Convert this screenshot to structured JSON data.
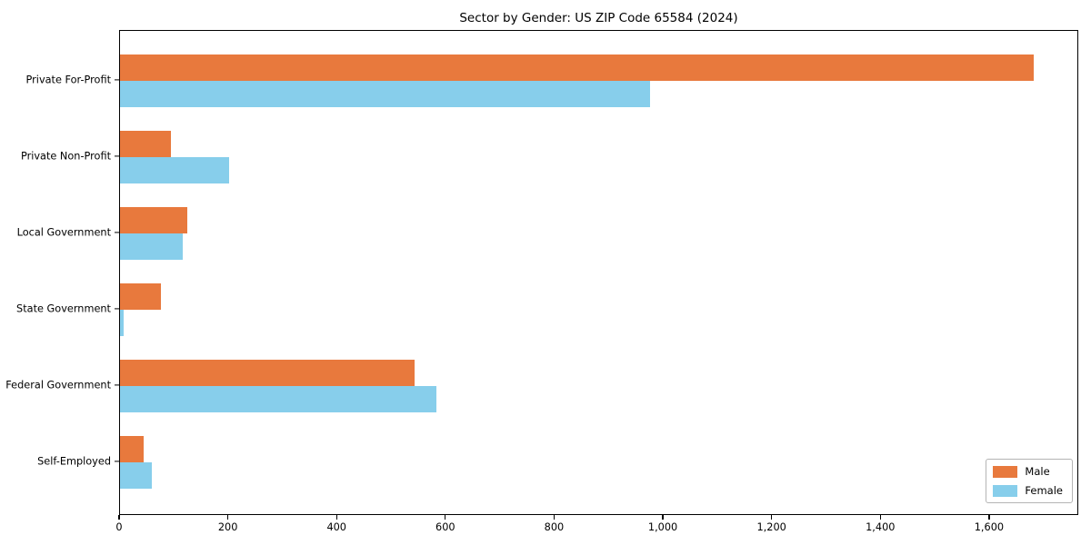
{
  "chart_data": {
    "type": "bar",
    "orientation": "horizontal",
    "title": "Sector by Gender: US ZIP Code 65584 (2024)",
    "categories": [
      "Private For-Profit",
      "Private Non-Profit",
      "Local Government",
      "State Government",
      "Federal Government",
      "Self-Employed"
    ],
    "series": [
      {
        "name": "Male",
        "color": "#E8793D",
        "values": [
          1680,
          94,
          123,
          75,
          542,
          44
        ]
      },
      {
        "name": "Female",
        "color": "#87CEEB",
        "values": [
          975,
          200,
          115,
          6,
          582,
          59
        ]
      }
    ],
    "xlabel": "",
    "ylabel": "",
    "xlim": [
      0,
      1764
    ],
    "xticks": [
      0,
      200,
      400,
      600,
      800,
      1000,
      1200,
      1400,
      1600
    ],
    "xtick_labels": [
      "0",
      "200",
      "400",
      "600",
      "800",
      "1,000",
      "1,200",
      "1,400",
      "1,600"
    ],
    "grid": false,
    "legend": {
      "position": "lower right",
      "entries": [
        "Male",
        "Female"
      ]
    },
    "spine_color": "#000000",
    "background_color": "#ffffff"
  }
}
